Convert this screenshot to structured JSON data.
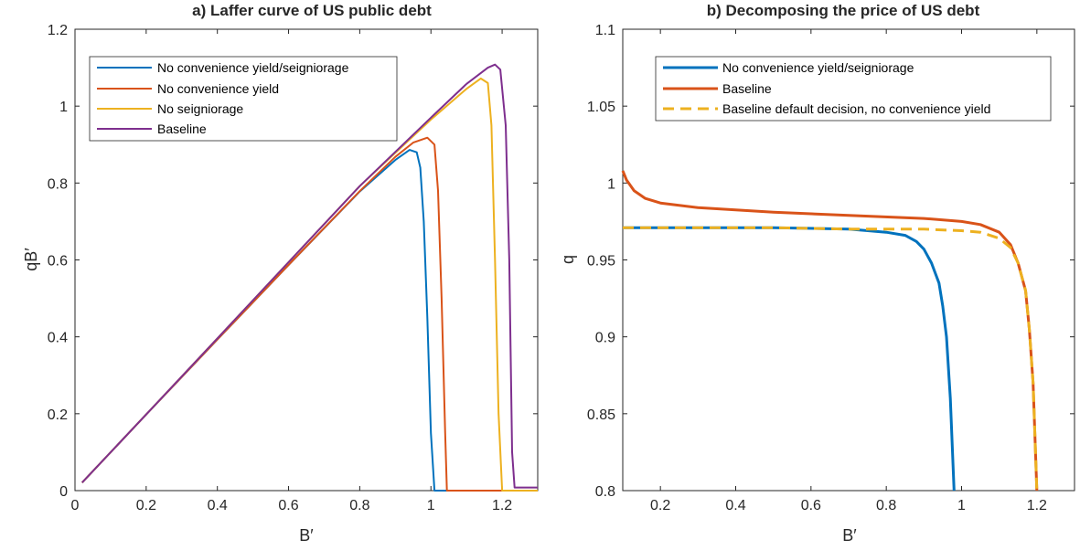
{
  "colors": {
    "blue": "#0072BD",
    "orange": "#D95319",
    "yellow": "#EDB120",
    "purple": "#7E2F8E",
    "axis": "#262626",
    "background": "#ffffff"
  },
  "chart_data": [
    {
      "type": "line",
      "title": "a) Laffer curve of US public debt",
      "xlabel": "B′",
      "ylabel": "qB′",
      "xlim": [
        0,
        1.3
      ],
      "ylim": [
        0,
        1.2
      ],
      "xticks": [
        "0",
        "0.2",
        "0.4",
        "0.6",
        "0.8",
        "1",
        "1.2"
      ],
      "yticks": [
        "0",
        "0.2",
        "0.4",
        "0.6",
        "0.8",
        "1",
        "1.2"
      ],
      "grid": false,
      "legend_position": "top-left",
      "series": [
        {
          "name": "No convenience yield/seigniorage",
          "color": "#0072BD",
          "style": "solid",
          "x": [
            0.02,
            0.2,
            0.4,
            0.6,
            0.8,
            0.9,
            0.94,
            0.96,
            0.97,
            0.98,
            0.99,
            1.0,
            1.01,
            1.3
          ],
          "y": [
            0.021,
            0.198,
            0.393,
            0.587,
            0.778,
            0.86,
            0.886,
            0.88,
            0.84,
            0.7,
            0.45,
            0.15,
            0.0,
            0.0
          ]
        },
        {
          "name": "No convenience yield",
          "color": "#D95319",
          "style": "solid",
          "x": [
            0.02,
            0.2,
            0.4,
            0.6,
            0.8,
            0.9,
            0.95,
            0.99,
            1.01,
            1.02,
            1.03,
            1.04,
            1.045,
            1.3
          ],
          "y": [
            0.021,
            0.198,
            0.393,
            0.587,
            0.779,
            0.868,
            0.905,
            0.918,
            0.9,
            0.78,
            0.5,
            0.15,
            0.0,
            0.0
          ]
        },
        {
          "name": "No seigniorage",
          "color": "#EDB120",
          "style": "solid",
          "x": [
            0.02,
            0.2,
            0.4,
            0.6,
            0.8,
            1.0,
            1.1,
            1.14,
            1.16,
            1.17,
            1.18,
            1.19,
            1.2,
            1.3
          ],
          "y": [
            0.021,
            0.198,
            0.396,
            0.594,
            0.792,
            0.965,
            1.045,
            1.072,
            1.06,
            0.95,
            0.6,
            0.2,
            0.0,
            0.0
          ]
        },
        {
          "name": "Baseline",
          "color": "#7E2F8E",
          "style": "solid",
          "x": [
            0.02,
            0.2,
            0.4,
            0.6,
            0.8,
            1.0,
            1.1,
            1.16,
            1.18,
            1.195,
            1.21,
            1.22,
            1.228,
            1.235,
            1.3
          ],
          "y": [
            0.021,
            0.198,
            0.396,
            0.594,
            0.792,
            0.97,
            1.058,
            1.1,
            1.108,
            1.095,
            0.95,
            0.6,
            0.1,
            0.008,
            0.008
          ]
        }
      ]
    },
    {
      "type": "line",
      "title": "b) Decomposing the price of US debt",
      "xlabel": "B′",
      "ylabel": "q",
      "xlim": [
        0.1,
        1.3
      ],
      "ylim": [
        0.8,
        1.1
      ],
      "xticks": [
        "0.2",
        "0.4",
        "0.6",
        "0.8",
        "1",
        "1.2"
      ],
      "yticks": [
        "0.8",
        "0.85",
        "0.9",
        "0.95",
        "1",
        "1.05",
        "1.1"
      ],
      "grid": false,
      "legend_position": "top-left",
      "series": [
        {
          "name": "No convenience yield/seigniorage",
          "color": "#0072BD",
          "style": "solid",
          "x": [
            0.1,
            0.3,
            0.5,
            0.7,
            0.8,
            0.85,
            0.88,
            0.9,
            0.92,
            0.94,
            0.95,
            0.96,
            0.97,
            0.98
          ],
          "y": [
            0.971,
            0.971,
            0.971,
            0.97,
            0.968,
            0.966,
            0.962,
            0.957,
            0.948,
            0.935,
            0.92,
            0.9,
            0.86,
            0.8
          ]
        },
        {
          "name": "Baseline",
          "color": "#D95319",
          "style": "solid",
          "x": [
            0.1,
            0.11,
            0.13,
            0.16,
            0.2,
            0.3,
            0.5,
            0.7,
            0.9,
            1.0,
            1.05,
            1.1,
            1.13,
            1.15,
            1.17,
            1.18,
            1.19,
            1.2
          ],
          "y": [
            1.008,
            1.002,
            0.995,
            0.99,
            0.987,
            0.984,
            0.981,
            0.979,
            0.977,
            0.975,
            0.973,
            0.968,
            0.96,
            0.948,
            0.93,
            0.905,
            0.87,
            0.8
          ]
        },
        {
          "name": "Baseline default decision, no convenience yield",
          "color": "#EDB120",
          "style": "dashed",
          "x": [
            0.1,
            0.3,
            0.5,
            0.7,
            0.9,
            1.0,
            1.05,
            1.1,
            1.13,
            1.15,
            1.17,
            1.18,
            1.19,
            1.2
          ],
          "y": [
            0.971,
            0.971,
            0.971,
            0.97,
            0.97,
            0.969,
            0.968,
            0.964,
            0.958,
            0.948,
            0.93,
            0.905,
            0.87,
            0.8
          ]
        }
      ]
    }
  ]
}
